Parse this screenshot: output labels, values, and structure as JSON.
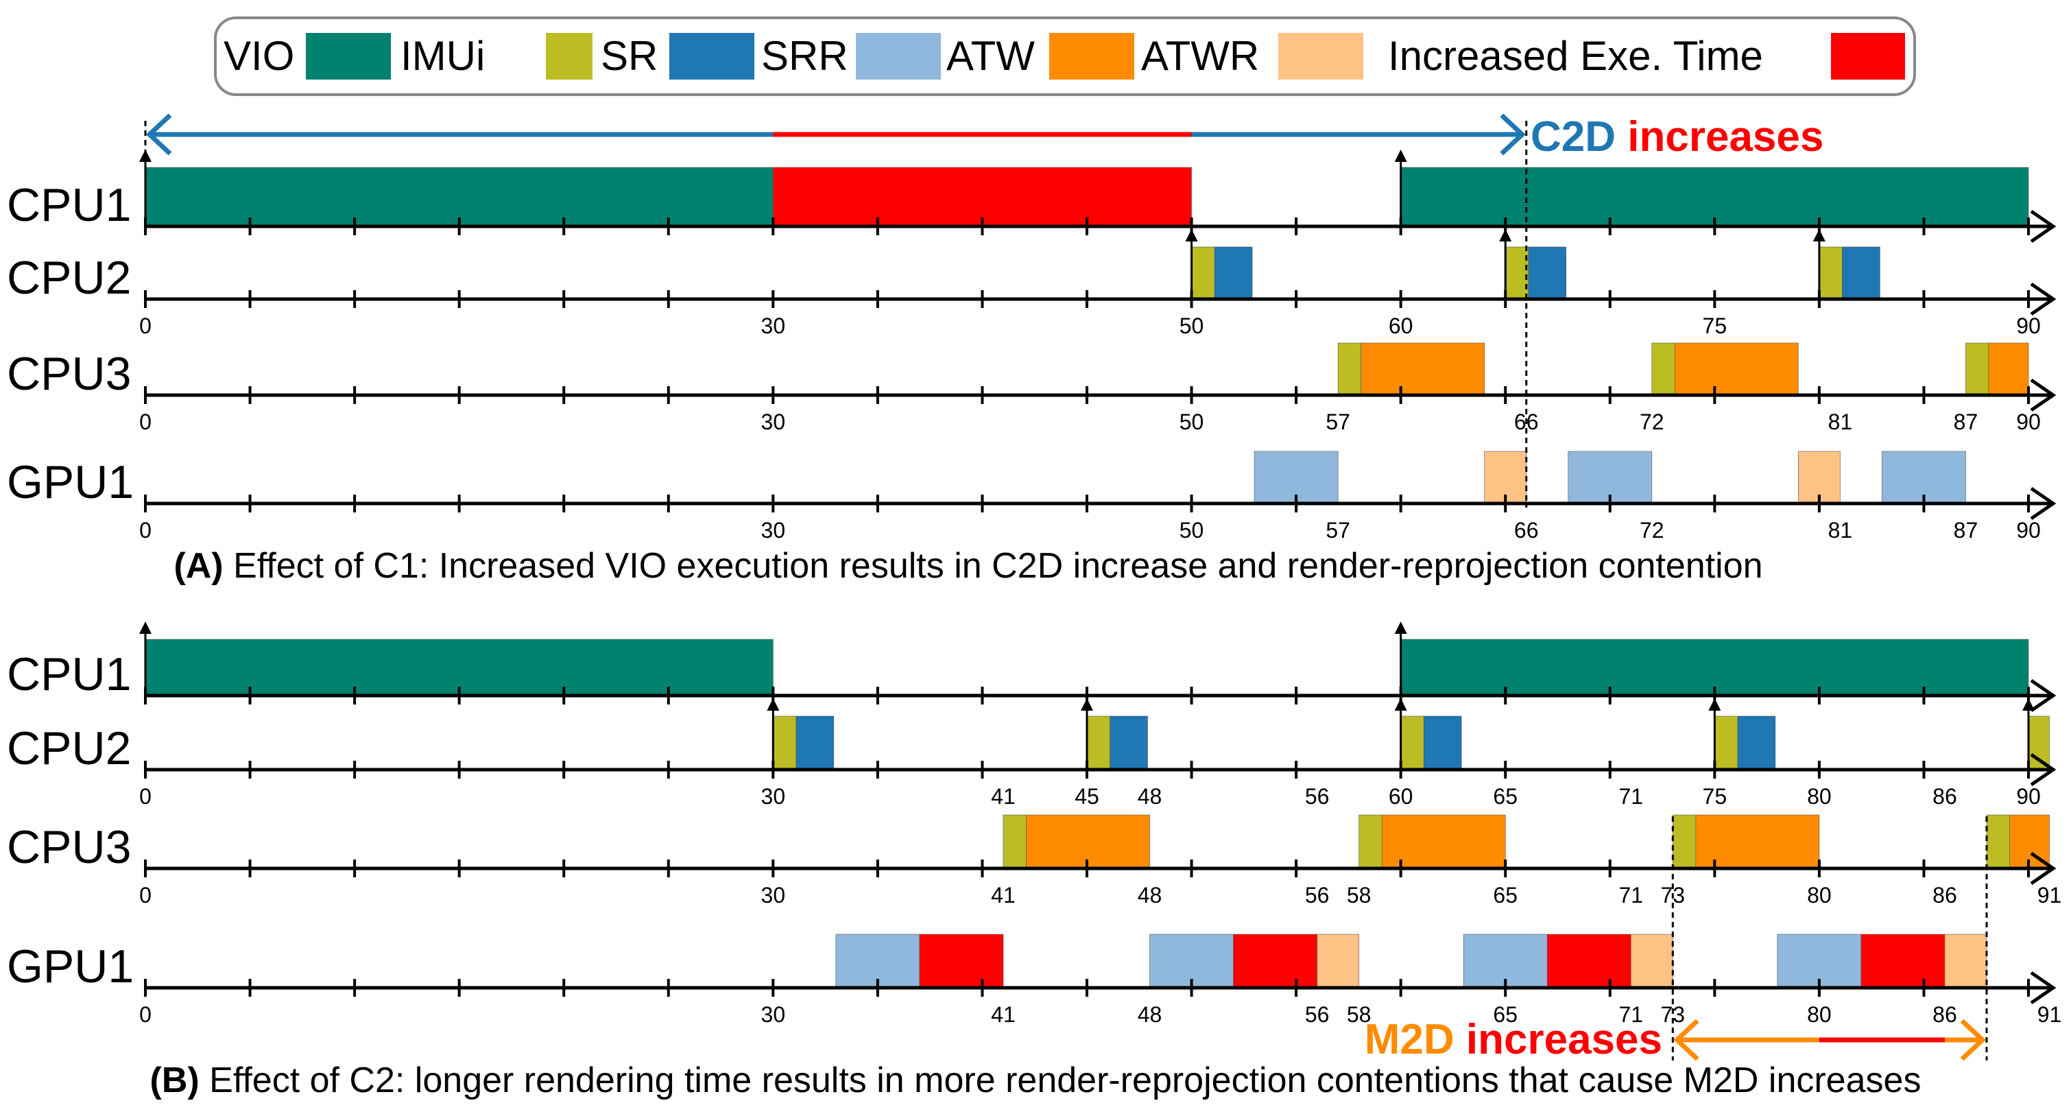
{
  "legend": {
    "items": [
      {
        "label": "VIO",
        "color": "#00826f"
      },
      {
        "label": "IMUi",
        "color": "#bcbd22"
      },
      {
        "label": "SR",
        "color": "#1f77b4"
      },
      {
        "label": "SRR",
        "color": "#8fb8dc"
      },
      {
        "label": "ATW",
        "color": "#ff8c00"
      },
      {
        "label": "ATWR",
        "color": "#ffc285"
      },
      {
        "label": "Increased Exe. Time",
        "color": "#ff0000"
      }
    ]
  },
  "colors": {
    "vio": "#00826f",
    "imui": "#bcbd22",
    "sr": "#1f77b4",
    "srr": "#8fb8dc",
    "atw": "#ff8c00",
    "atwr": "#ffc285",
    "inc": "#ff0000",
    "c2d_blue": "#1f77b4",
    "m2d_orange": "#ff8c00"
  },
  "panel_a": {
    "caption_bold": "(A)",
    "caption_text": " Effect of C1: Increased VIO execution results in C2D increase and render-reprojection contention",
    "annotation": {
      "part1": "C2D",
      "part2": " increases",
      "span_start": 0,
      "span_end": 66,
      "red_start": 30,
      "red_end": 50
    },
    "rows": [
      {
        "label": "CPU1",
        "ticks": [],
        "segments": [
          {
            "start": 0,
            "end": 30,
            "color": "vio"
          },
          {
            "start": 30,
            "end": 50,
            "color": "inc"
          },
          {
            "start": 60,
            "end": 90,
            "color": "vio"
          }
        ],
        "arrows": [
          0,
          60
        ]
      },
      {
        "label": "CPU2",
        "ticks": [
          "0",
          "30",
          "50",
          "60",
          "75",
          "90"
        ],
        "segments": [
          {
            "start": 50,
            "end": 51.1,
            "color": "imui"
          },
          {
            "start": 51.1,
            "end": 52.9,
            "color": "sr"
          },
          {
            "start": 65,
            "end": 66.1,
            "color": "imui"
          },
          {
            "start": 66.1,
            "end": 67.9,
            "color": "sr"
          },
          {
            "start": 80,
            "end": 81.1,
            "color": "imui"
          },
          {
            "start": 81.1,
            "end": 82.9,
            "color": "sr"
          }
        ],
        "arrows": [
          50,
          65,
          80
        ]
      },
      {
        "label": "CPU3",
        "ticks": [
          "0",
          "30",
          "50",
          "57",
          "66",
          "72",
          "81",
          "87",
          "90"
        ],
        "segments": [
          {
            "start": 57,
            "end": 58.1,
            "color": "imui"
          },
          {
            "start": 58.1,
            "end": 64,
            "color": "atw"
          },
          {
            "start": 72,
            "end": 73.1,
            "color": "imui"
          },
          {
            "start": 73.1,
            "end": 79,
            "color": "atw"
          },
          {
            "start": 87,
            "end": 88.1,
            "color": "imui"
          },
          {
            "start": 88.1,
            "end": 90,
            "color": "atw"
          }
        ],
        "arrows": []
      },
      {
        "label": "GPU1",
        "ticks": [
          "0",
          "30",
          "50",
          "57",
          "66",
          "72",
          "81",
          "87",
          "90"
        ],
        "segments": [
          {
            "start": 53,
            "end": 57,
            "color": "srr"
          },
          {
            "start": 64,
            "end": 66,
            "color": "atwr"
          },
          {
            "start": 68,
            "end": 72,
            "color": "srr"
          },
          {
            "start": 79,
            "end": 81,
            "color": "atwr"
          },
          {
            "start": 83,
            "end": 87,
            "color": "srr"
          }
        ],
        "arrows": []
      }
    ]
  },
  "panel_b": {
    "caption_bold": "(B)",
    "caption_text": " Effect of C2: longer rendering time results in more render-reprojection contentions that cause M2D increases",
    "annotation": {
      "part1": "M2D",
      "part2": " increases",
      "span_start": 73,
      "span_end": 88,
      "red_start": 80,
      "red_end": 86
    },
    "rows": [
      {
        "label": "CPU1",
        "ticks": [],
        "segments": [
          {
            "start": 0,
            "end": 30,
            "color": "vio"
          },
          {
            "start": 60,
            "end": 90,
            "color": "vio"
          }
        ],
        "arrows": [
          0,
          60
        ]
      },
      {
        "label": "CPU2",
        "ticks": [
          "0",
          "30",
          "41",
          "45",
          "48",
          "56",
          "60",
          "65",
          "71",
          "75",
          "80",
          "86",
          "90"
        ],
        "segments": [
          {
            "start": 30,
            "end": 31.1,
            "color": "imui"
          },
          {
            "start": 31.1,
            "end": 32.9,
            "color": "sr"
          },
          {
            "start": 45,
            "end": 46.1,
            "color": "imui"
          },
          {
            "start": 46.1,
            "end": 47.9,
            "color": "sr"
          },
          {
            "start": 60,
            "end": 61.1,
            "color": "imui"
          },
          {
            "start": 61.1,
            "end": 62.9,
            "color": "sr"
          },
          {
            "start": 75,
            "end": 76.1,
            "color": "imui"
          },
          {
            "start": 76.1,
            "end": 77.9,
            "color": "sr"
          },
          {
            "start": 90,
            "end": 91,
            "color": "imui"
          }
        ],
        "arrows": [
          30,
          45,
          60,
          75,
          90
        ]
      },
      {
        "label": "CPU3",
        "ticks": [
          "0",
          "30",
          "41",
          "48",
          "56",
          "58",
          "65",
          "71",
          "73",
          "80",
          "86",
          "91"
        ],
        "segments": [
          {
            "start": 41,
            "end": 42.1,
            "color": "imui"
          },
          {
            "start": 42.1,
            "end": 48,
            "color": "atw"
          },
          {
            "start": 58,
            "end": 59.1,
            "color": "imui"
          },
          {
            "start": 59.1,
            "end": 65,
            "color": "atw"
          },
          {
            "start": 73,
            "end": 74.1,
            "color": "imui"
          },
          {
            "start": 74.1,
            "end": 80,
            "color": "atw"
          },
          {
            "start": 88,
            "end": 89.1,
            "color": "imui"
          },
          {
            "start": 89.1,
            "end": 91,
            "color": "atw"
          }
        ],
        "arrows": []
      },
      {
        "label": "GPU1",
        "ticks": [
          "0",
          "30",
          "41",
          "48",
          "56",
          "58",
          "65",
          "71",
          "73",
          "80",
          "86",
          "91"
        ],
        "segments": [
          {
            "start": 33,
            "end": 37,
            "color": "srr"
          },
          {
            "start": 37,
            "end": 41,
            "color": "inc"
          },
          {
            "start": 48,
            "end": 52,
            "color": "srr"
          },
          {
            "start": 52,
            "end": 56,
            "color": "inc"
          },
          {
            "start": 56,
            "end": 58,
            "color": "atwr"
          },
          {
            "start": 63,
            "end": 67,
            "color": "srr"
          },
          {
            "start": 67,
            "end": 71,
            "color": "inc"
          },
          {
            "start": 71,
            "end": 73,
            "color": "atwr"
          },
          {
            "start": 78,
            "end": 82,
            "color": "srr"
          },
          {
            "start": 82,
            "end": 86,
            "color": "inc"
          },
          {
            "start": 86,
            "end": 88,
            "color": "atwr"
          }
        ],
        "arrows": []
      }
    ]
  }
}
